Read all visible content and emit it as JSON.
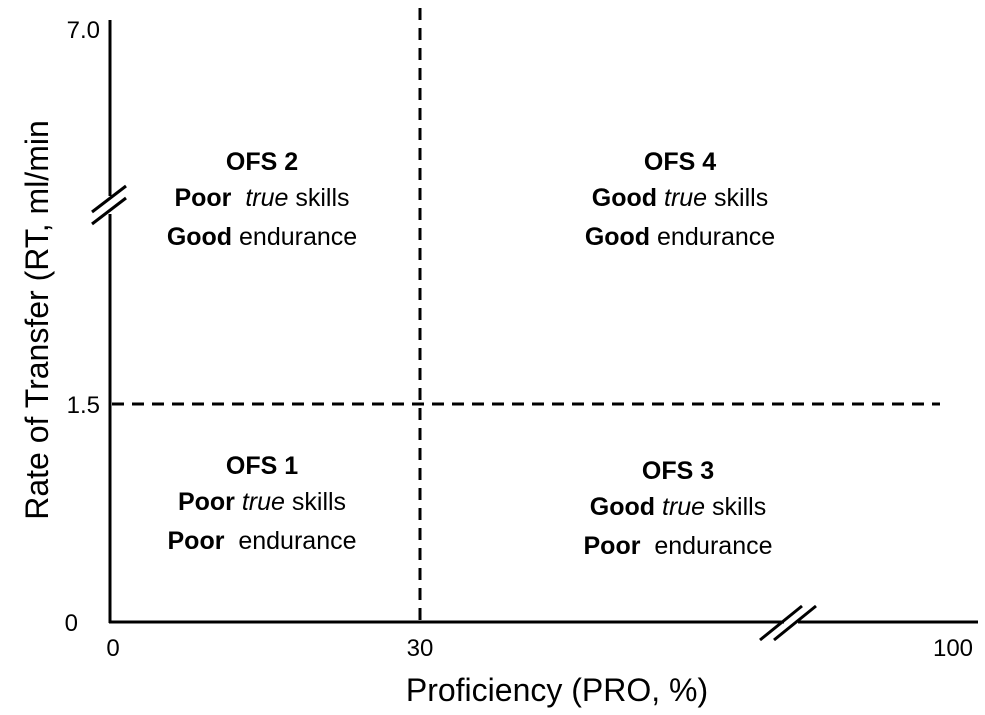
{
  "axes": {
    "x_label": "Proficiency (PRO, %)",
    "y_label": "Rate of Transfer (RT, ml/min",
    "x_ticks": [
      "0",
      "30",
      "100"
    ],
    "y_ticks": [
      "7.0",
      "1.5",
      "0"
    ]
  },
  "quadrants": [
    {
      "title": "OFS 2",
      "lines": [
        [
          {
            "text": "Poor ",
            "style": "bold"
          },
          {
            "text": " true",
            "style": "italic"
          },
          {
            "text": " skills",
            "style": "normal"
          }
        ],
        [
          {
            "text": "Good",
            "style": "bold"
          },
          {
            "text": " endurance",
            "style": "normal"
          }
        ]
      ]
    },
    {
      "title": "OFS 4",
      "lines": [
        [
          {
            "text": "Good",
            "style": "bold"
          },
          {
            "text": " true",
            "style": "italic"
          },
          {
            "text": " skills",
            "style": "normal"
          }
        ],
        [
          {
            "text": "Good",
            "style": "bold"
          },
          {
            "text": " endurance",
            "style": "normal"
          }
        ]
      ]
    },
    {
      "title": "OFS 1",
      "lines": [
        [
          {
            "text": "Poor",
            "style": "bold"
          },
          {
            "text": " true",
            "style": "italic"
          },
          {
            "text": " skills",
            "style": "normal"
          }
        ],
        [
          {
            "text": "Poor",
            "style": "bold"
          },
          {
            "text": "  endurance",
            "style": "normal"
          }
        ]
      ]
    },
    {
      "title": "OFS 3",
      "lines": [
        [
          {
            "text": "Good",
            "style": "bold"
          },
          {
            "text": " true",
            "style": "italic"
          },
          {
            "text": " skills",
            "style": "normal"
          }
        ],
        [
          {
            "text": "Poor",
            "style": "bold"
          },
          {
            "text": "  endurance",
            "style": "normal"
          }
        ]
      ]
    }
  ]
}
